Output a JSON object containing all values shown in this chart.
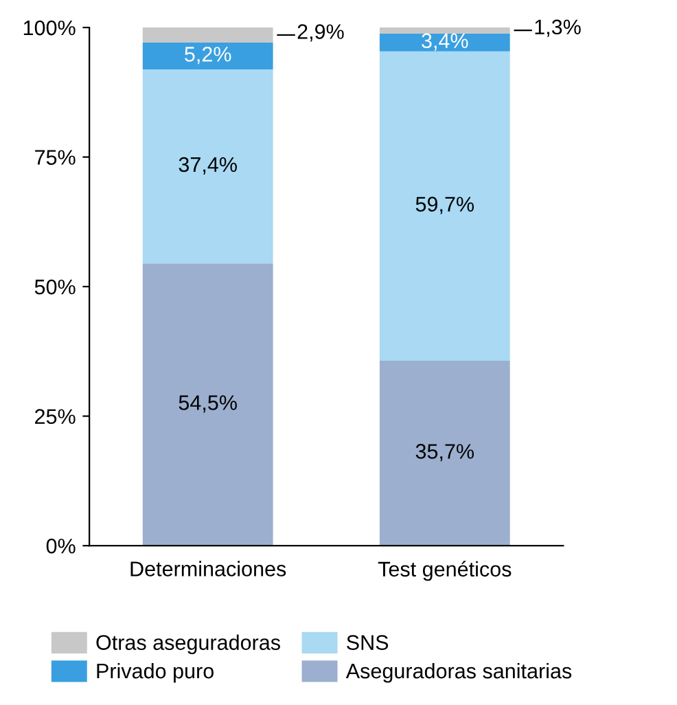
{
  "chart_data": {
    "type": "bar",
    "stacked": true,
    "categories": [
      "Determinaciones",
      "Test genéticos"
    ],
    "series": [
      {
        "name": "Aseguradoras sanitarias",
        "color": "#9cafcf",
        "values": [
          54.5,
          35.7
        ],
        "value_labels": [
          "54,5%",
          "35,7%"
        ]
      },
      {
        "name": "SNS",
        "color": "#a9d9f3",
        "values": [
          37.4,
          59.7
        ],
        "value_labels": [
          "37,4%",
          "59,7%"
        ]
      },
      {
        "name": "Privado puro",
        "color": "#3a9fe0",
        "values": [
          5.2,
          3.4
        ],
        "value_labels": [
          "5,2%",
          "3,4%"
        ]
      },
      {
        "name": "Otras aseguradoras",
        "color": "#c8c8c8",
        "values": [
          2.9,
          1.3
        ],
        "value_labels": [
          "2,9%",
          "1,3%"
        ]
      }
    ],
    "ylim": [
      0,
      100
    ],
    "yticks": [
      {
        "value": 0,
        "label": "0%"
      },
      {
        "value": 25,
        "label": "25%"
      },
      {
        "value": 50,
        "label": "50%"
      },
      {
        "value": 75,
        "label": "75%"
      },
      {
        "value": 100,
        "label": "100%"
      }
    ],
    "grid": false,
    "legend": "bottom"
  }
}
